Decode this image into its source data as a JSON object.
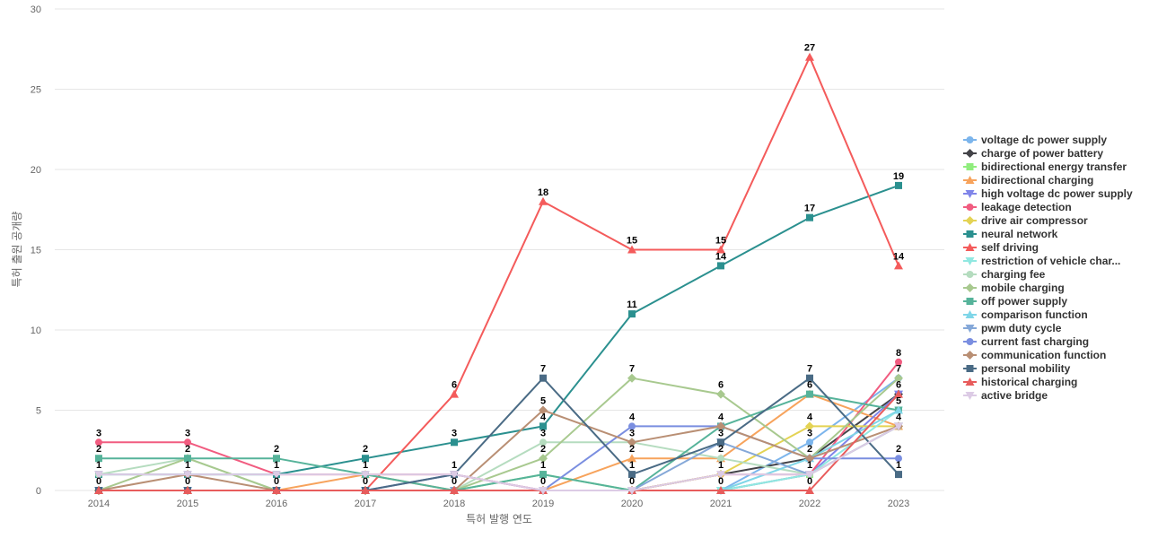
{
  "chart_data": {
    "type": "line",
    "xlabel": "특허 발행 연도",
    "ylabel": "특허 출원 공개량",
    "ylim": [
      0,
      30
    ],
    "yticks": [
      0,
      5,
      10,
      15,
      20,
      25,
      30
    ],
    "categories": [
      "2014",
      "2015",
      "2016",
      "2017",
      "2018",
      "2019",
      "2020",
      "2021",
      "2022",
      "2023"
    ],
    "grid": true,
    "legend_position": "right",
    "series": [
      {
        "name": "voltage dc power supply",
        "color": "#7cb5ec",
        "marker": "circle",
        "values": [
          0,
          0,
          0,
          0,
          0,
          0,
          0,
          0,
          3,
          7
        ]
      },
      {
        "name": "charge of power battery",
        "color": "#434348",
        "marker": "diamond",
        "values": [
          0,
          0,
          0,
          0,
          0,
          0,
          0,
          1,
          2,
          6
        ]
      },
      {
        "name": "bidirectional energy transfer",
        "color": "#90ed7d",
        "marker": "square",
        "values": [
          0,
          0,
          0,
          0,
          0,
          1,
          0,
          0,
          1,
          4
        ]
      },
      {
        "name": "bidirectional charging",
        "color": "#f7a35c",
        "marker": "triangle",
        "values": [
          0,
          0,
          0,
          1,
          0,
          0,
          2,
          2,
          6,
          4
        ]
      },
      {
        "name": "high voltage dc power supply",
        "color": "#8085e9",
        "marker": "triangle-down",
        "values": [
          0,
          0,
          0,
          0,
          1,
          0,
          0,
          0,
          1,
          6
        ]
      },
      {
        "name": "leakage detection",
        "color": "#f15c80",
        "marker": "circle",
        "values": [
          3,
          3,
          1,
          1,
          1,
          0,
          0,
          1,
          1,
          8
        ]
      },
      {
        "name": "drive air compressor",
        "color": "#e4d354",
        "marker": "diamond",
        "values": [
          0,
          0,
          0,
          0,
          0,
          0,
          0,
          1,
          4,
          4
        ]
      },
      {
        "name": "neural network",
        "color": "#2b908f",
        "marker": "square",
        "values": [
          1,
          1,
          1,
          2,
          3,
          4,
          11,
          14,
          17,
          19
        ]
      },
      {
        "name": "self driving",
        "color": "#f45b5b",
        "marker": "triangle",
        "values": [
          0,
          0,
          0,
          0,
          6,
          18,
          15,
          15,
          27,
          14
        ]
      },
      {
        "name": "restriction of vehicle char...",
        "color": "#91e8e1",
        "marker": "triangle-down",
        "values": [
          0,
          0,
          0,
          0,
          0,
          0,
          0,
          0,
          1,
          5
        ]
      },
      {
        "name": "charging fee",
        "color": "#b5dcbf",
        "marker": "circle",
        "values": [
          1,
          2,
          0,
          0,
          0,
          3,
          3,
          2,
          1,
          4
        ]
      },
      {
        "name": "mobile charging",
        "color": "#a8c98f",
        "marker": "diamond",
        "values": [
          0,
          2,
          0,
          0,
          0,
          2,
          7,
          6,
          2,
          7
        ]
      },
      {
        "name": "off power supply",
        "color": "#56b39a",
        "marker": "square",
        "values": [
          2,
          2,
          2,
          1,
          0,
          1,
          0,
          4,
          6,
          5
        ]
      },
      {
        "name": "comparison function",
        "color": "#7fd6e8",
        "marker": "triangle",
        "values": [
          0,
          0,
          0,
          0,
          0,
          0,
          0,
          0,
          2,
          5
        ]
      },
      {
        "name": "pwm duty cycle",
        "color": "#85a8d8",
        "marker": "triangle-down",
        "values": [
          0,
          0,
          0,
          0,
          0,
          0,
          0,
          3,
          1,
          4
        ]
      },
      {
        "name": "current fast charging",
        "color": "#7a8ee0",
        "marker": "circle",
        "values": [
          0,
          0,
          0,
          0,
          0,
          0,
          4,
          4,
          2,
          2
        ]
      },
      {
        "name": "communication function",
        "color": "#b98f74",
        "marker": "diamond",
        "values": [
          0,
          1,
          0,
          0,
          0,
          5,
          3,
          4,
          2,
          4
        ]
      },
      {
        "name": "personal mobility",
        "color": "#4a6b85",
        "marker": "square",
        "values": [
          0,
          0,
          0,
          0,
          1,
          7,
          1,
          3,
          7,
          1
        ]
      },
      {
        "name": "historical charging",
        "color": "#e85c5c",
        "marker": "triangle",
        "values": [
          0,
          0,
          0,
          0,
          0,
          0,
          0,
          0,
          0,
          6
        ]
      },
      {
        "name": "active bridge",
        "color": "#dccbe5",
        "marker": "triangle-down",
        "values": [
          1,
          1,
          1,
          1,
          1,
          0,
          0,
          1,
          1,
          4
        ]
      }
    ],
    "data_labels": [
      {
        "x": "2014",
        "y": 3,
        "text": "3"
      },
      {
        "x": "2014",
        "y": 2,
        "text": "2"
      },
      {
        "x": "2014",
        "y": 1,
        "text": "1"
      },
      {
        "x": "2014",
        "y": 0,
        "text": "0"
      },
      {
        "x": "2015",
        "y": 3,
        "text": "3"
      },
      {
        "x": "2015",
        "y": 2,
        "text": "2"
      },
      {
        "x": "2015",
        "y": 1,
        "text": "1"
      },
      {
        "x": "2015",
        "y": 0,
        "text": "0"
      },
      {
        "x": "2016",
        "y": 2,
        "text": "2"
      },
      {
        "x": "2016",
        "y": 1,
        "text": "1"
      },
      {
        "x": "2016",
        "y": 0,
        "text": "0"
      },
      {
        "x": "2017",
        "y": 2,
        "text": "2"
      },
      {
        "x": "2017",
        "y": 1,
        "text": "1"
      },
      {
        "x": "2017",
        "y": 0,
        "text": "0"
      },
      {
        "x": "2018",
        "y": 6,
        "text": "6"
      },
      {
        "x": "2018",
        "y": 3,
        "text": "3"
      },
      {
        "x": "2018",
        "y": 1,
        "text": "1"
      },
      {
        "x": "2018",
        "y": 0,
        "text": "0"
      },
      {
        "x": "2019",
        "y": 18,
        "text": "18"
      },
      {
        "x": "2019",
        "y": 7,
        "text": "7"
      },
      {
        "x": "2019",
        "y": 5,
        "text": "5"
      },
      {
        "x": "2019",
        "y": 4,
        "text": "4"
      },
      {
        "x": "2019",
        "y": 3,
        "text": "3"
      },
      {
        "x": "2019",
        "y": 2,
        "text": "2"
      },
      {
        "x": "2019",
        "y": 1,
        "text": "1"
      },
      {
        "x": "2019",
        "y": 0,
        "text": "0"
      },
      {
        "x": "2020",
        "y": 15,
        "text": "15"
      },
      {
        "x": "2020",
        "y": 11,
        "text": "11"
      },
      {
        "x": "2020",
        "y": 7,
        "text": "7"
      },
      {
        "x": "2020",
        "y": 4,
        "text": "4"
      },
      {
        "x": "2020",
        "y": 3,
        "text": "3"
      },
      {
        "x": "2020",
        "y": 2,
        "text": "2"
      },
      {
        "x": "2020",
        "y": 1,
        "text": "1"
      },
      {
        "x": "2020",
        "y": 0,
        "text": "0"
      },
      {
        "x": "2021",
        "y": 15,
        "text": "15"
      },
      {
        "x": "2021",
        "y": 14,
        "text": "14"
      },
      {
        "x": "2021",
        "y": 6,
        "text": "6"
      },
      {
        "x": "2021",
        "y": 4,
        "text": "4"
      },
      {
        "x": "2021",
        "y": 3,
        "text": "3"
      },
      {
        "x": "2021",
        "y": 2,
        "text": "2"
      },
      {
        "x": "2021",
        "y": 1,
        "text": "1"
      },
      {
        "x": "2021",
        "y": 0,
        "text": "0"
      },
      {
        "x": "2022",
        "y": 27,
        "text": "27"
      },
      {
        "x": "2022",
        "y": 17,
        "text": "17"
      },
      {
        "x": "2022",
        "y": 7,
        "text": "7"
      },
      {
        "x": "2022",
        "y": 6,
        "text": "6"
      },
      {
        "x": "2022",
        "y": 4,
        "text": "4"
      },
      {
        "x": "2022",
        "y": 3,
        "text": "3"
      },
      {
        "x": "2022",
        "y": 2,
        "text": "2"
      },
      {
        "x": "2022",
        "y": 1,
        "text": "1"
      },
      {
        "x": "2022",
        "y": 0,
        "text": "0"
      },
      {
        "x": "2023",
        "y": 19,
        "text": "19"
      },
      {
        "x": "2023",
        "y": 14,
        "text": "14"
      },
      {
        "x": "2023",
        "y": 8,
        "text": "8"
      },
      {
        "x": "2023",
        "y": 7,
        "text": "7"
      },
      {
        "x": "2023",
        "y": 6,
        "text": "6"
      },
      {
        "x": "2023",
        "y": 5,
        "text": "5"
      },
      {
        "x": "2023",
        "y": 4,
        "text": "4"
      },
      {
        "x": "2023",
        "y": 2,
        "text": "2"
      },
      {
        "x": "2023",
        "y": 1,
        "text": "1"
      }
    ]
  }
}
